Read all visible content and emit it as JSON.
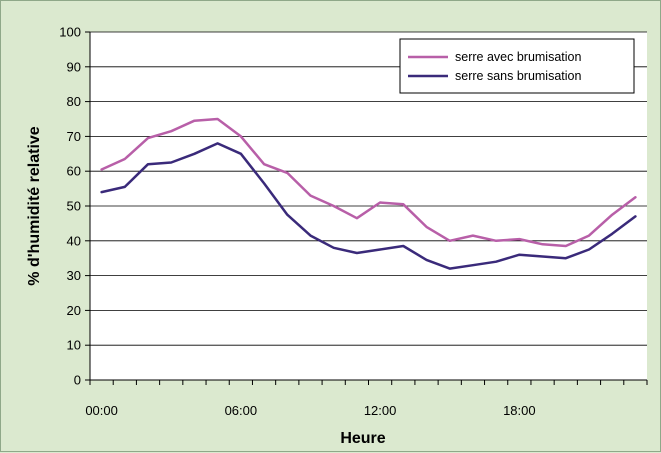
{
  "chart_data": {
    "type": "line",
    "title": "",
    "xlabel": "Heure",
    "ylabel": "% d'humidité relative",
    "ylim": [
      0,
      100
    ],
    "yticks": [
      0,
      10,
      20,
      30,
      40,
      50,
      60,
      70,
      80,
      90,
      100
    ],
    "xlim": [
      -0.5,
      23.5
    ],
    "xticks": [
      {
        "value": 0,
        "label": "00:00"
      },
      {
        "value": 6,
        "label": "06:00"
      },
      {
        "value": 12,
        "label": "12:00"
      },
      {
        "value": 18,
        "label": "18:00"
      }
    ],
    "grid": "horizontal",
    "legend_position": "top-right",
    "x": [
      0,
      1,
      2,
      3,
      4,
      5,
      6,
      7,
      8,
      9,
      10,
      11,
      12,
      13,
      14,
      15,
      16,
      17,
      18,
      19,
      20,
      21,
      22,
      23
    ],
    "series": [
      {
        "name": "serre avec brumisation",
        "color": "#b85fa8",
        "values": [
          60.5,
          63.5,
          69.5,
          71.5,
          74.5,
          75,
          70,
          62,
          59.5,
          53,
          50,
          46.5,
          51,
          50.5,
          44,
          40,
          41.5,
          40,
          40.5,
          39,
          38.5,
          41.5,
          47.5,
          52.5
        ]
      },
      {
        "name": "serre sans brumisation",
        "color": "#3a2a7a",
        "values": [
          54,
          55.5,
          62,
          62.5,
          65,
          68,
          65,
          56.5,
          47.5,
          41.5,
          38,
          36.5,
          37.5,
          38.5,
          34.5,
          32,
          33,
          34,
          36,
          35.5,
          35,
          37.5,
          42,
          47
        ]
      }
    ]
  }
}
